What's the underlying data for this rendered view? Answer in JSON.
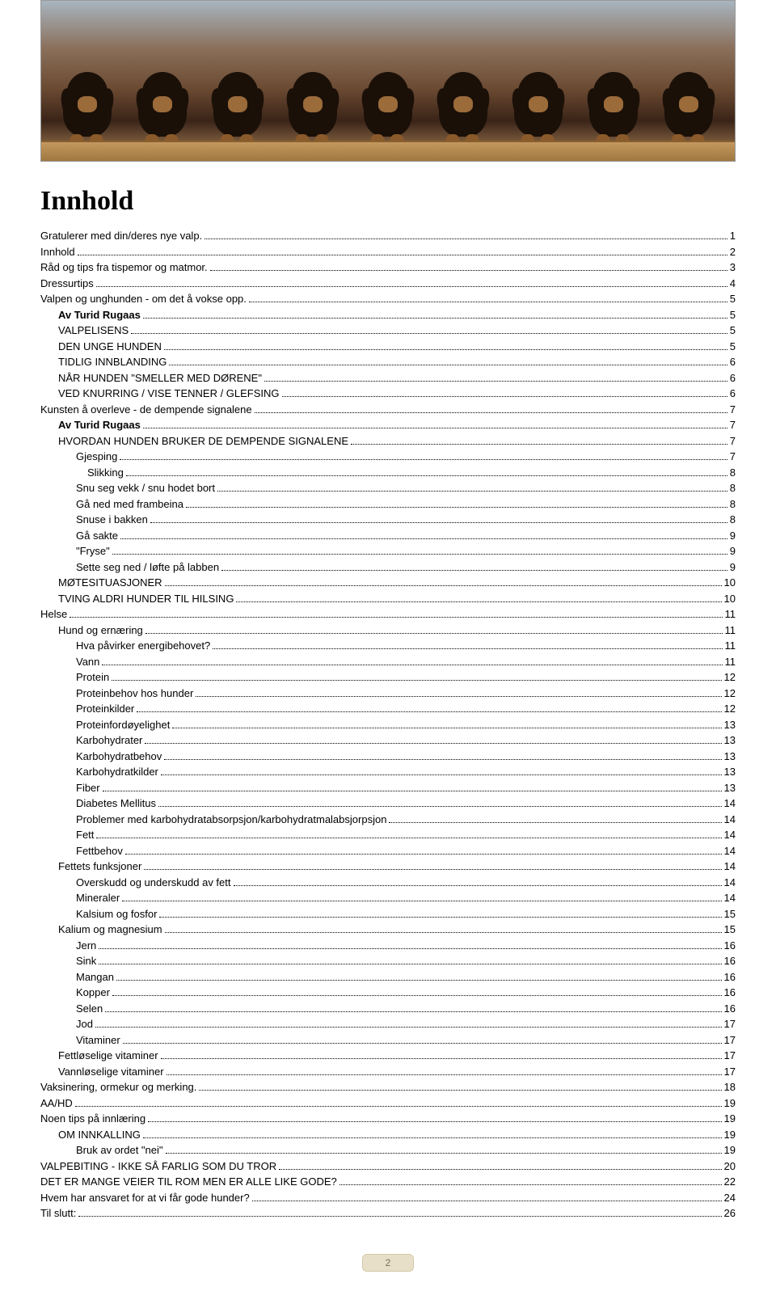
{
  "title": "Innhold",
  "page_number": "2",
  "toc": [
    {
      "label": "Gratulerer med din/deres nye valp.",
      "page": "1",
      "indent": 0,
      "bold": false
    },
    {
      "label": "Innhold",
      "page": "2",
      "indent": 0,
      "bold": false
    },
    {
      "label": "Råd og tips fra tispemor og matmor.",
      "page": "3",
      "indent": 0,
      "bold": false
    },
    {
      "label": "Dressurtips",
      "page": "4",
      "indent": 0,
      "bold": false
    },
    {
      "label": "Valpen og unghunden - om det å vokse opp.",
      "page": "5",
      "indent": 0,
      "bold": false
    },
    {
      "label": "Av Turid Rugaas",
      "page": "5",
      "indent": 1,
      "bold": true
    },
    {
      "label": "VALPELISENS",
      "page": "5",
      "indent": 1,
      "bold": false
    },
    {
      "label": "DEN UNGE HUNDEN",
      "page": "5",
      "indent": 1,
      "bold": false
    },
    {
      "label": "TIDLIG INNBLANDING",
      "page": "6",
      "indent": 1,
      "bold": false
    },
    {
      "label": "NÅR HUNDEN \"SMELLER MED DØRENE\"",
      "page": "6",
      "indent": 1,
      "bold": false
    },
    {
      "label": "VED KNURRING / VISE TENNER / GLEFSING",
      "page": "6",
      "indent": 1,
      "bold": false
    },
    {
      "label": "Kunsten å overleve - de dempende signalene",
      "page": "7",
      "indent": 0,
      "bold": false
    },
    {
      "label": "Av Turid Rugaas",
      "page": "7",
      "indent": 1,
      "bold": true
    },
    {
      "label": "HVORDAN HUNDEN BRUKER DE DEMPENDE SIGNALENE",
      "page": "7",
      "indent": 1,
      "bold": false
    },
    {
      "label": "Gjesping",
      "page": "7",
      "indent": 2,
      "bold": false
    },
    {
      "label": "Slikking",
      "page": "8",
      "indent": 3,
      "bold": false
    },
    {
      "label": "Snu seg vekk / snu hodet bort",
      "page": "8",
      "indent": 2,
      "bold": false
    },
    {
      "label": "Gå ned med frambeina",
      "page": "8",
      "indent": 2,
      "bold": false
    },
    {
      "label": "Snuse i bakken",
      "page": "8",
      "indent": 2,
      "bold": false
    },
    {
      "label": "Gå sakte",
      "page": "9",
      "indent": 2,
      "bold": false
    },
    {
      "label": "\"Fryse\"",
      "page": "9",
      "indent": 2,
      "bold": false
    },
    {
      "label": "Sette seg ned / løfte på labben",
      "page": "9",
      "indent": 2,
      "bold": false
    },
    {
      "label": "MØTESITUASJONER",
      "page": "10",
      "indent": 1,
      "bold": false
    },
    {
      "label": "TVING ALDRI HUNDER TIL HILSING",
      "page": "10",
      "indent": 1,
      "bold": false
    },
    {
      "label": "Helse",
      "page": "11",
      "indent": 0,
      "bold": false
    },
    {
      "label": "Hund og ernæring",
      "page": "11",
      "indent": 1,
      "bold": false
    },
    {
      "label": "Hva påvirker energibehovet?",
      "page": "11",
      "indent": 2,
      "bold": false
    },
    {
      "label": "Vann",
      "page": "11",
      "indent": 2,
      "bold": false
    },
    {
      "label": "Protein",
      "page": "12",
      "indent": 2,
      "bold": false
    },
    {
      "label": "Proteinbehov hos hunder",
      "page": "12",
      "indent": 2,
      "bold": false
    },
    {
      "label": "Proteinkilder",
      "page": "12",
      "indent": 2,
      "bold": false
    },
    {
      "label": "Proteinfordøyelighet",
      "page": "13",
      "indent": 2,
      "bold": false
    },
    {
      "label": "Karbohydrater",
      "page": "13",
      "indent": 2,
      "bold": false
    },
    {
      "label": "Karbohydratbehov",
      "page": "13",
      "indent": 2,
      "bold": false
    },
    {
      "label": "Karbohydratkilder",
      "page": "13",
      "indent": 2,
      "bold": false
    },
    {
      "label": "Fiber",
      "page": "13",
      "indent": 2,
      "bold": false
    },
    {
      "label": "Diabetes Mellitus",
      "page": "14",
      "indent": 2,
      "bold": false
    },
    {
      "label": "Problemer med karbohydratabsorpsjon/karbohydratmalabsjorpsjon",
      "page": "14",
      "indent": 2,
      "bold": false
    },
    {
      "label": "Fett",
      "page": "14",
      "indent": 2,
      "bold": false
    },
    {
      "label": "Fettbehov",
      "page": "14",
      "indent": 2,
      "bold": false
    },
    {
      "label": "Fettets funksjoner",
      "page": "14",
      "indent": 1,
      "bold": false
    },
    {
      "label": "Overskudd og underskudd av fett",
      "page": "14",
      "indent": 2,
      "bold": false
    },
    {
      "label": "Mineraler",
      "page": "14",
      "indent": 2,
      "bold": false
    },
    {
      "label": "Kalsium og fosfor",
      "page": "15",
      "indent": 2,
      "bold": false
    },
    {
      "label": "Kalium og magnesium",
      "page": "15",
      "indent": 1,
      "bold": false
    },
    {
      "label": "Jern",
      "page": "16",
      "indent": 2,
      "bold": false
    },
    {
      "label": "Sink",
      "page": "16",
      "indent": 2,
      "bold": false
    },
    {
      "label": "Mangan",
      "page": "16",
      "indent": 2,
      "bold": false
    },
    {
      "label": "Kopper",
      "page": "16",
      "indent": 2,
      "bold": false
    },
    {
      "label": "Selen",
      "page": "16",
      "indent": 2,
      "bold": false
    },
    {
      "label": "Jod",
      "page": "17",
      "indent": 2,
      "bold": false
    },
    {
      "label": "Vitaminer",
      "page": "17",
      "indent": 2,
      "bold": false
    },
    {
      "label": "Fettløselige vitaminer",
      "page": "17",
      "indent": 1,
      "bold": false
    },
    {
      "label": "Vannløselige vitaminer",
      "page": "17",
      "indent": 1,
      "bold": false
    },
    {
      "label": "Vaksinering, ormekur og merking.",
      "page": "18",
      "indent": 0,
      "bold": false
    },
    {
      "label": "AA/HD",
      "page": "19",
      "indent": 0,
      "bold": false
    },
    {
      "label": "Noen tips på innlæring",
      "page": "19",
      "indent": 0,
      "bold": false
    },
    {
      "label": "OM INNKALLING",
      "page": "19",
      "indent": 1,
      "bold": false
    },
    {
      "label": "Bruk av ordet \"nei\"",
      "page": "19",
      "indent": 2,
      "bold": false
    },
    {
      "label": "VALPEBITING - IKKE SÅ FARLIG SOM DU TROR",
      "page": "20",
      "indent": 0,
      "bold": false
    },
    {
      "label": "DET ER MANGE VEIER TIL ROM MEN ER ALLE LIKE GODE?",
      "page": "22",
      "indent": 0,
      "bold": false
    },
    {
      "label": "Hvem har ansvaret for at vi får gode hunder?",
      "page": "24",
      "indent": 0,
      "bold": false
    },
    {
      "label": "Til slutt:",
      "page": "26",
      "indent": 0,
      "bold": false
    }
  ]
}
